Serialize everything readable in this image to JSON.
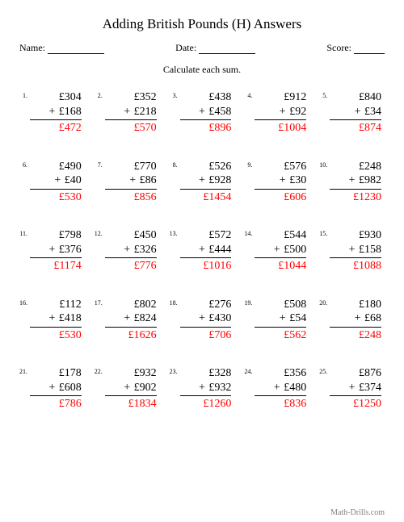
{
  "title": "Adding British Pounds (H) Answers",
  "labels": {
    "name": "Name:",
    "date": "Date:",
    "score": "Score:"
  },
  "instruction": "Calculate each sum.",
  "currency": "£",
  "plus": "+",
  "answer_color": "#ff0000",
  "footer": "Math-Drills.com",
  "problems": [
    {
      "n": "1.",
      "a": 304,
      "b": 168,
      "sum": 472
    },
    {
      "n": "2.",
      "a": 352,
      "b": 218,
      "sum": 570
    },
    {
      "n": "3.",
      "a": 438,
      "b": 458,
      "sum": 896
    },
    {
      "n": "4.",
      "a": 912,
      "b": 92,
      "sum": 1004
    },
    {
      "n": "5.",
      "a": 840,
      "b": 34,
      "sum": 874
    },
    {
      "n": "6.",
      "a": 490,
      "b": 40,
      "sum": 530
    },
    {
      "n": "7.",
      "a": 770,
      "b": 86,
      "sum": 856
    },
    {
      "n": "8.",
      "a": 526,
      "b": 928,
      "sum": 1454
    },
    {
      "n": "9.",
      "a": 576,
      "b": 30,
      "sum": 606
    },
    {
      "n": "10.",
      "a": 248,
      "b": 982,
      "sum": 1230
    },
    {
      "n": "11.",
      "a": 798,
      "b": 376,
      "sum": 1174
    },
    {
      "n": "12.",
      "a": 450,
      "b": 326,
      "sum": 776
    },
    {
      "n": "13.",
      "a": 572,
      "b": 444,
      "sum": 1016
    },
    {
      "n": "14.",
      "a": 544,
      "b": 500,
      "sum": 1044
    },
    {
      "n": "15.",
      "a": 930,
      "b": 158,
      "sum": 1088
    },
    {
      "n": "16.",
      "a": 112,
      "b": 418,
      "sum": 530
    },
    {
      "n": "17.",
      "a": 802,
      "b": 824,
      "sum": 1626
    },
    {
      "n": "18.",
      "a": 276,
      "b": 430,
      "sum": 706
    },
    {
      "n": "19.",
      "a": 508,
      "b": 54,
      "sum": 562
    },
    {
      "n": "20.",
      "a": 180,
      "b": 68,
      "sum": 248
    },
    {
      "n": "21.",
      "a": 178,
      "b": 608,
      "sum": 786
    },
    {
      "n": "22.",
      "a": 932,
      "b": 902,
      "sum": 1834
    },
    {
      "n": "23.",
      "a": 328,
      "b": 932,
      "sum": 1260
    },
    {
      "n": "24.",
      "a": 356,
      "b": 480,
      "sum": 836
    },
    {
      "n": "25.",
      "a": 876,
      "b": 374,
      "sum": 1250
    }
  ]
}
